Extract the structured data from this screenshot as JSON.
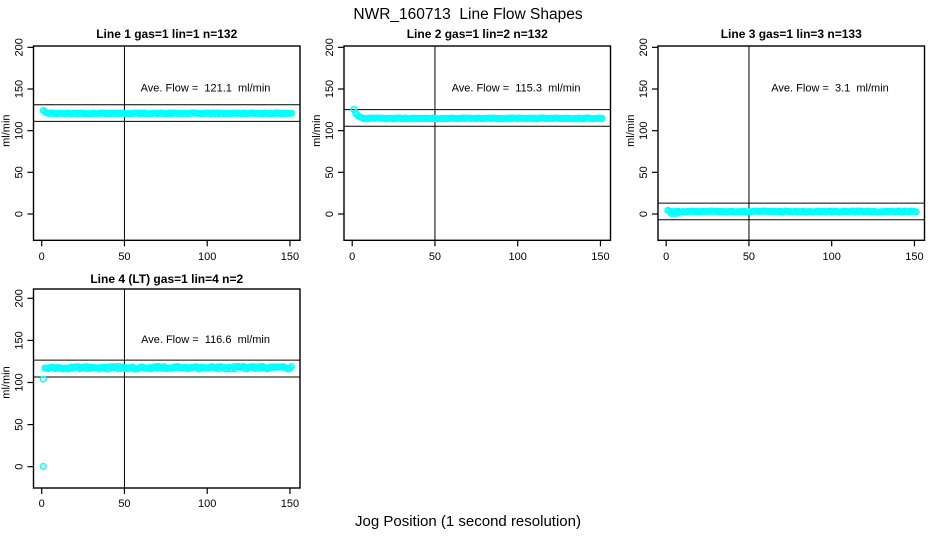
{
  "figure": {
    "title": "NWR_160713  Line Flow Shapes",
    "xlabel": "Jog Position (1 second resolution)",
    "background": "#FFFFFF",
    "accent_color": "#00FFFF"
  },
  "chart_data": [
    {
      "type": "scatter",
      "row": 0,
      "col": 0,
      "title": "Line 1 gas=1 lin=1 n=132",
      "n": 132,
      "ave_flow": 121.1,
      "annotation": "Ave. Flow =  121.1  ml/min",
      "ylabel": "ml/min",
      "xticks": [
        0,
        50,
        100,
        150
      ],
      "yticks": [
        0,
        50,
        100,
        150,
        200
      ],
      "xlim": [
        -5.6,
        156.1
      ],
      "ylim": [
        -31.6,
        201.7
      ],
      "vline_x": 50,
      "hlines": [
        131.1,
        111.1
      ],
      "marker_color": "#00FFFF",
      "series": {
        "x_start": 1,
        "x_end": 151,
        "steady": 120.8,
        "jitter": 0.5,
        "transient": [
          [
            1,
            124.2
          ],
          [
            2,
            122.5
          ],
          [
            3,
            121.6
          ]
        ],
        "outliers": []
      }
    },
    {
      "type": "scatter",
      "row": 0,
      "col": 1,
      "title": "Line 2 gas=1 lin=2 n=132",
      "n": 132,
      "ave_flow": 115.3,
      "annotation": "Ave. Flow =  115.3  ml/min",
      "ylabel": "ml/min",
      "xticks": [
        0,
        50,
        100,
        150
      ],
      "yticks": [
        0,
        50,
        100,
        150,
        200
      ],
      "xlim": [
        -5.6,
        156.1
      ],
      "ylim": [
        -31.6,
        201.7
      ],
      "vline_x": 50,
      "hlines": [
        125.3,
        105.3
      ],
      "marker_color": "#00FFFF",
      "series": {
        "x_start": 1,
        "x_end": 151,
        "steady": 114.7,
        "jitter": 0.5,
        "transient": [
          [
            1,
            125.5
          ],
          [
            2,
            121.5
          ],
          [
            3,
            119.0
          ],
          [
            4,
            117.3
          ],
          [
            5,
            116.2
          ],
          [
            6,
            115.4
          ]
        ],
        "outliers": []
      }
    },
    {
      "type": "scatter",
      "row": 0,
      "col": 2,
      "title": "Line 3 gas=1 lin=3 n=133",
      "n": 133,
      "ave_flow": 3.1,
      "annotation": "Ave. Flow =  3.1  ml/min",
      "ylabel": "ml/min",
      "xticks": [
        0,
        50,
        100,
        150
      ],
      "yticks": [
        0,
        50,
        100,
        150,
        200
      ],
      "xlim": [
        -5.6,
        156.1
      ],
      "ylim": [
        -31.6,
        201.7
      ],
      "vline_x": 50,
      "hlines": [
        13.1,
        -6.9
      ],
      "marker_color": "#00FFFF",
      "series": {
        "x_start": 1,
        "x_end": 151,
        "steady": 3.0,
        "jitter": 0.6,
        "transient": [
          [
            1,
            4.3
          ],
          [
            2,
            3.6
          ]
        ],
        "outliers": [
          [
            3,
            0.8
          ],
          [
            5,
            0.6
          ],
          [
            7,
            0.9
          ]
        ]
      }
    },
    {
      "type": "scatter",
      "row": 1,
      "col": 0,
      "title": "Line 4 (LT) gas=1 lin=4 n=2",
      "n": 2,
      "ave_flow": 116.6,
      "annotation": "Ave. Flow =  116.6  ml/min",
      "ylabel": "ml/min",
      "xticks": [
        0,
        50,
        100,
        150
      ],
      "yticks": [
        0,
        50,
        100,
        150,
        200
      ],
      "xlim": [
        -5.6,
        156.1
      ],
      "ylim": [
        -31.6,
        201.7
      ],
      "vline_x": 50,
      "hlines": [
        126.6,
        106.6
      ],
      "marker_color": "#00FFFF",
      "series": {
        "x_start": 2,
        "x_end": 151,
        "steady": 117.5,
        "jitter": 1.6,
        "transient": [],
        "outliers": [
          [
            1,
            0.3
          ],
          [
            1,
            104.0
          ]
        ]
      }
    }
  ]
}
